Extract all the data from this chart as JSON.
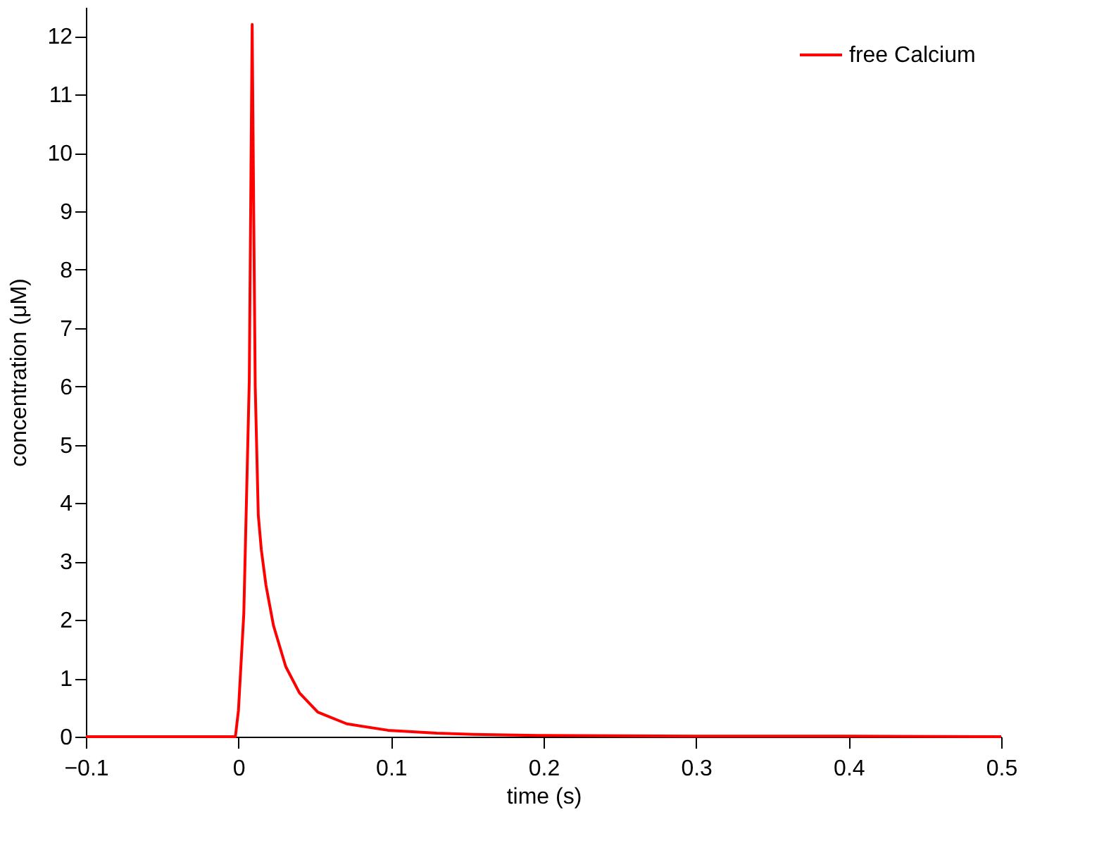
{
  "chart_data": {
    "type": "line",
    "xlabel": "time (s)",
    "ylabel": "concentration (μM)",
    "xlim": [
      -0.1,
      0.5
    ],
    "xticks": [
      -0.1,
      0,
      0.1,
      0.2,
      0.3,
      0.4,
      0.5
    ],
    "ylim": [
      0,
      12.5
    ],
    "yticks": [
      0,
      1,
      2,
      3,
      4,
      5,
      6,
      7,
      8,
      9,
      10,
      11,
      12
    ],
    "grid": false,
    "legend": "top right",
    "marker": "none",
    "line_style": "solid",
    "series": [
      {
        "name": "free Calcium",
        "color": "#ff0000",
        "x": [
          -0.1,
          -0.002,
          0,
          0.0035,
          0.0071,
          0.009,
          0.01,
          0.011,
          0.013,
          0.015,
          0.018,
          0.023,
          0.031,
          0.04,
          0.052,
          0.071,
          0.098,
          0.13,
          0.154,
          0.2,
          0.3,
          0.4,
          0.5
        ],
        "values": [
          0,
          0,
          0.45,
          2.1,
          6.1,
          12.2,
          9,
          6.0,
          3.8,
          3.2,
          2.6,
          1.9,
          1.2,
          0.75,
          0.42,
          0.22,
          0.11,
          0.06,
          0.04,
          0.02,
          0.01,
          0.01,
          0
        ]
      }
    ]
  }
}
